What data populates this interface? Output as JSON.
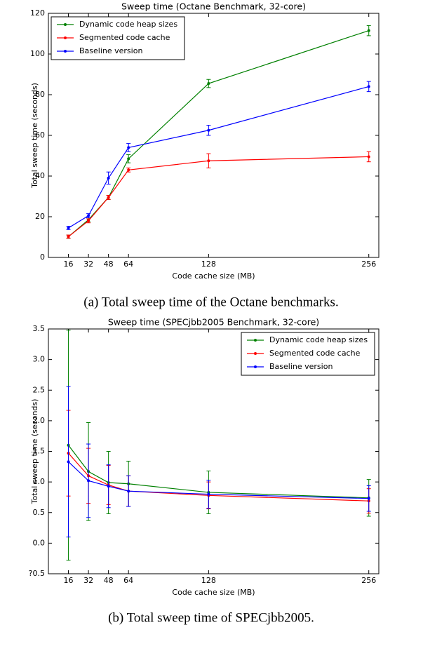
{
  "chart_data": [
    {
      "type": "line",
      "title": "Sweep time (Octane Benchmark, 32-core)",
      "x_label": "Code cache size (MB)",
      "y_label": "Total sweep time (seconds)",
      "caption": "(a) Total sweep time of the Octane benchmarks.",
      "x": [
        16,
        32,
        48,
        64,
        128,
        256
      ],
      "xlim": [
        0,
        264
      ],
      "xticks": [
        16,
        32,
        48,
        64,
        128,
        256
      ],
      "ylim": [
        0,
        120
      ],
      "yticks": [
        0,
        20,
        40,
        60,
        80,
        100,
        120
      ],
      "legend": "upper left",
      "series": [
        {
          "name": "Dynamic code heap sizes",
          "color": "#008000",
          "values": [
            10.2,
            18.5,
            29.5,
            48.5,
            85.5,
            111.5
          ],
          "errors": [
            0.8,
            1,
            1,
            2,
            2,
            2.5
          ]
        },
        {
          "name": "Segmented code cache",
          "color": "#ff0000",
          "values": [
            10.2,
            18,
            29.5,
            43,
            47.5,
            49.5
          ],
          "errors": [
            0.8,
            1,
            1,
            1,
            3.5,
            2.5
          ]
        },
        {
          "name": "Baseline version",
          "color": "#0000ff",
          "values": [
            14.5,
            20.5,
            39,
            54,
            62.5,
            84
          ],
          "errors": [
            0.8,
            1,
            3,
            2,
            2.5,
            2.5
          ]
        }
      ]
    },
    {
      "type": "line",
      "title": "Sweep time (SPECjbb2005 Benchmark, 32-core)",
      "x_label": "Code cache size (MB)",
      "y_label": "Total sweep time (seconds)",
      "caption": "(b) Total sweep time of SPECjbb2005.",
      "x": [
        16,
        32,
        48,
        64,
        128,
        256
      ],
      "xlim": [
        0,
        264
      ],
      "xticks": [
        16,
        32,
        48,
        64,
        128,
        256
      ],
      "ylim": [
        -0.5,
        3.5
      ],
      "yticks": [
        {
          "value": -0.5,
          "label": "?0.5"
        },
        {
          "value": 0,
          "label": "0.0"
        },
        0.5,
        {
          "value": 1,
          "label": "1.0"
        },
        1.5,
        {
          "value": 2,
          "label": "2.0"
        },
        2.5,
        {
          "value": 3,
          "label": "3.0"
        },
        3.5
      ],
      "legend": "upper right",
      "series": [
        {
          "name": "Dynamic code heap sizes",
          "color": "#008000",
          "values": [
            1.6,
            1.17,
            0.99,
            0.97,
            0.83,
            0.74
          ],
          "errors": [
            1.88,
            0.8,
            0.51,
            0.37,
            0.35,
            0.3
          ]
        },
        {
          "name": "Segmented code cache",
          "color": "#ff0000",
          "values": [
            1.47,
            1.1,
            0.95,
            0.85,
            0.78,
            0.69
          ],
          "errors": [
            0.7,
            0.45,
            0.32,
            0.25,
            0.22,
            0.2
          ]
        },
        {
          "name": "Baseline version",
          "color": "#0000ff",
          "values": [
            1.33,
            1.02,
            0.93,
            0.85,
            0.8,
            0.73
          ],
          "errors": [
            1.23,
            0.6,
            0.35,
            0.25,
            0.23,
            0.21
          ]
        }
      ]
    }
  ]
}
